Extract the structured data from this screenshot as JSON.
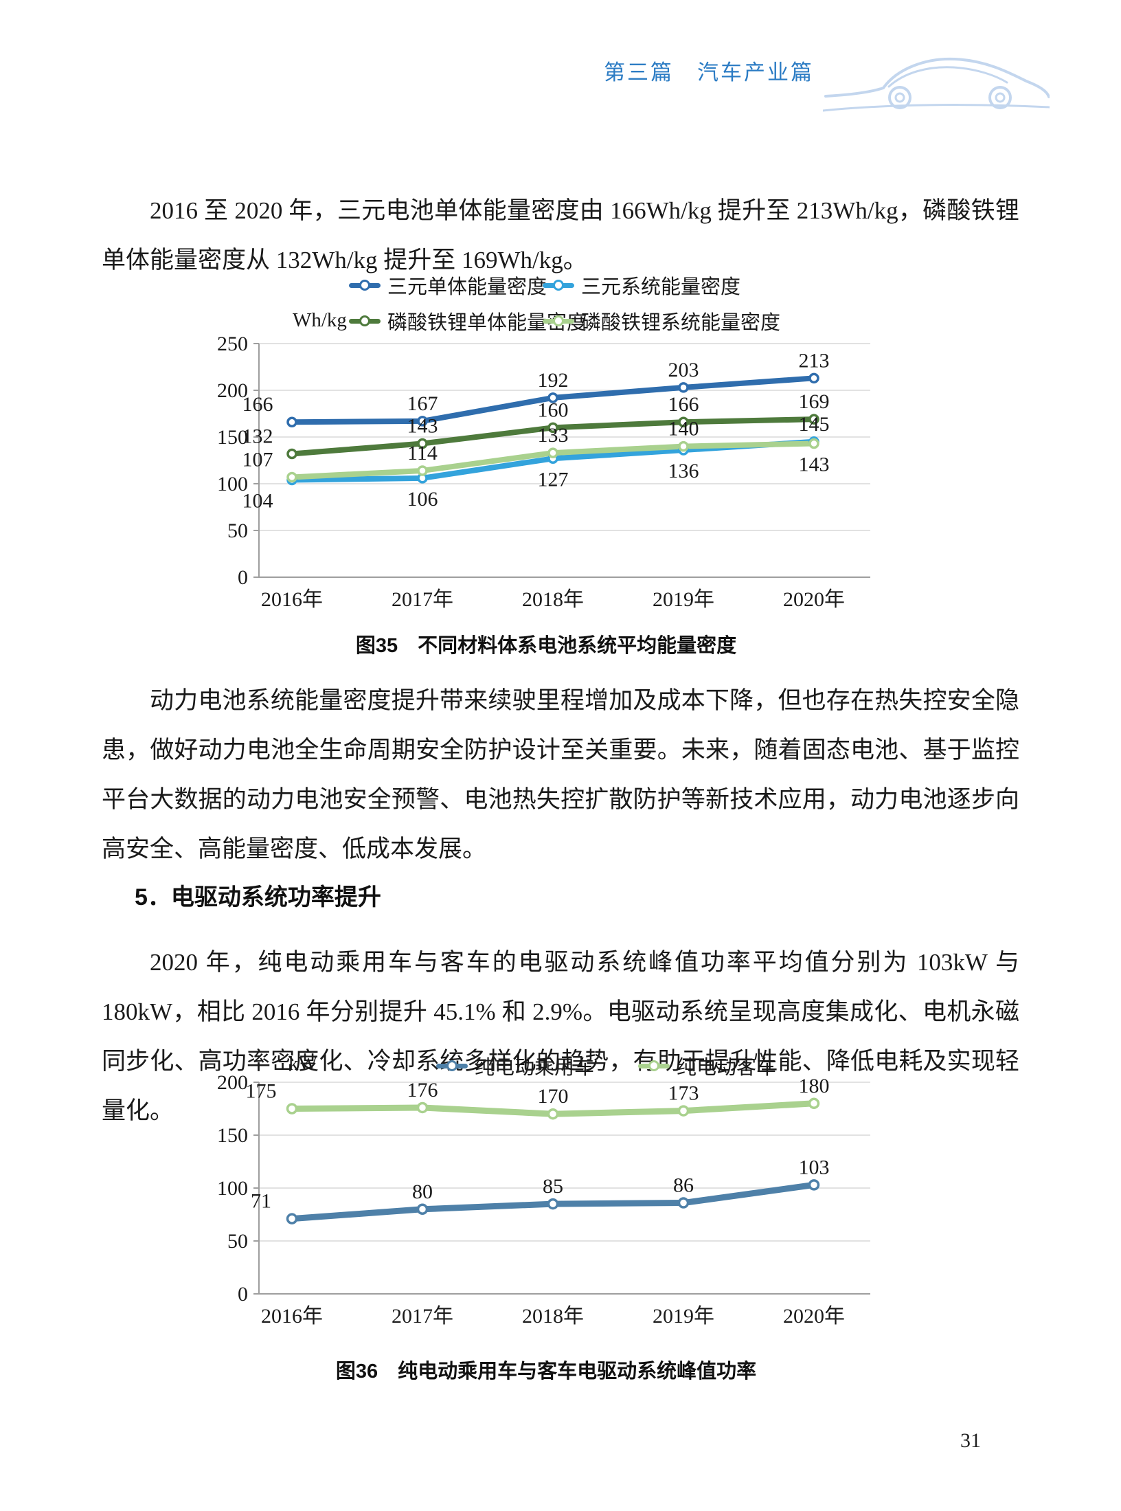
{
  "header": {
    "chapter_title": "第三篇　汽车产业篇"
  },
  "page_number": "31",
  "paragraphs": {
    "p1": "2016 至 2020 年，三元电池单体能量密度由 166Wh/kg 提升至 213Wh/kg，磷酸铁锂单体能量密度从 132Wh/kg 提升至 169Wh/kg。",
    "p2": "动力电池系统能量密度提升带来续驶里程增加及成本下降，但也存在热失控安全隐患，做好动力电池全生命周期安全防护设计至关重要。未来，随着固态电池、基于监控平台大数据的动力电池安全预警、电池热失控扩散防护等新技术应用，动力电池逐步向高安全、高能量密度、低成本发展。",
    "p3": "2020 年，纯电动乘用车与客车的电驱动系统峰值功率平均值分别为 103kW 与 180kW，相比 2016 年分别提升 45.1% 和 2.9%。电驱动系统呈现高度集成化、电机永磁同步化、高功率密度化、冷却系统多样化的趋势，有助于提升性能、降低电耗及实现轻量化。"
  },
  "section_heading": "5．电驱动系统功率提升",
  "colors": {
    "header_blue": "#2C7CC4",
    "car_icon_blue": "#C3D6EE",
    "gridline": "#D8D8D8",
    "axis": "#9E9E9E"
  },
  "chart_data": [
    {
      "id": "figure35",
      "type": "line",
      "title": "图35　不同材料体系电池系统平均能量密度",
      "unit": "Wh/kg",
      "categories": [
        "2016年",
        "2017年",
        "2018年",
        "2019年",
        "2020年"
      ],
      "ylim": [
        0,
        250
      ],
      "ytick": 50,
      "grid": true,
      "legend_position": "top",
      "series": [
        {
          "name": "三元单体能量密度",
          "color": "#2F6DAD",
          "label_color": "#1a1a1a",
          "values": [
            166,
            167,
            192,
            203,
            213
          ],
          "label_pos": [
            "above",
            "above",
            "above",
            "above",
            "above"
          ]
        },
        {
          "name": "三元系统能量密度",
          "color": "#33A3DC",
          "label_color": "#33A3DC",
          "values": [
            104,
            106,
            127,
            136,
            145
          ],
          "label_pos": [
            "below",
            "below",
            "below",
            "below",
            "above"
          ]
        },
        {
          "name": "磷酸铁锂单体能量密度",
          "color": "#4E7A3C",
          "label_color": "#1a1a1a",
          "values": [
            132,
            143,
            160,
            166,
            169
          ],
          "label_pos": [
            "above",
            "above",
            "above",
            "above",
            "above"
          ]
        },
        {
          "name": "磷酸铁锂系统能量密度",
          "color": "#A9D18E",
          "label_color": "#A9D18E",
          "values": [
            107,
            114,
            133,
            140,
            143
          ],
          "label_pos": [
            "above",
            "above",
            "above",
            "above",
            "below"
          ]
        }
      ]
    },
    {
      "id": "figure36",
      "type": "line",
      "title": "图36　纯电动乘用车与客车电驱动系统峰值功率",
      "unit": "kW",
      "categories": [
        "2016年",
        "2017年",
        "2018年",
        "2019年",
        "2020年"
      ],
      "ylim": [
        0,
        200
      ],
      "ytick": 50,
      "grid": true,
      "legend_position": "top",
      "series": [
        {
          "name": "纯电动乘用车",
          "color": "#4E80A8",
          "label_color": "#1a1a1a",
          "values": [
            71,
            80,
            85,
            86,
            103
          ],
          "label_pos": [
            "above",
            "above",
            "above",
            "above",
            "above"
          ]
        },
        {
          "name": "纯电动客车",
          "color": "#A9D18E",
          "label_color": "#1a1a1a",
          "values": [
            175,
            176,
            170,
            173,
            180
          ],
          "label_pos": [
            "above",
            "above",
            "above",
            "above",
            "above"
          ]
        }
      ]
    }
  ]
}
